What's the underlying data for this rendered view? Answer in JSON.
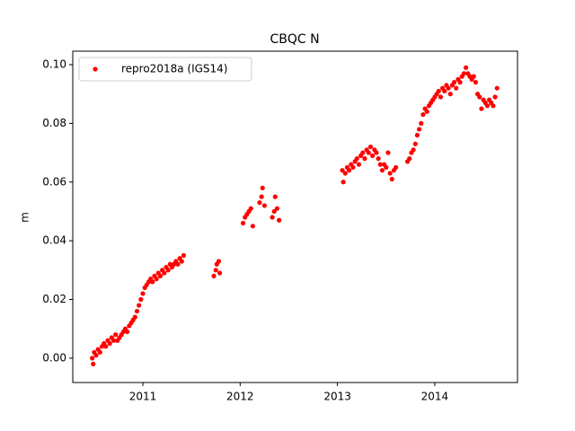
{
  "chart_data": {
    "type": "scatter",
    "title": "CBQC N",
    "ylabel": "m",
    "xlim": [
      2010.28,
      2014.85
    ],
    "xticks": [
      2011,
      2012,
      2013,
      2014
    ],
    "ylim": [
      -0.0083,
      0.1046
    ],
    "yticks": [
      {
        "value": 0,
        "label": "0.00"
      },
      0.02,
      0.04,
      0.06,
      0.08,
      {
        "value": 0.1,
        "label": "0.10"
      }
    ],
    "legend": "upper left",
    "grid": false,
    "series": [
      {
        "name": "repro2018a (IGS14)",
        "color": "#ff0000",
        "x": [
          2010.48,
          2010.49,
          2010.5,
          2010.52,
          2010.54,
          2010.56,
          2010.58,
          2010.6,
          2010.62,
          2010.64,
          2010.66,
          2010.68,
          2010.7,
          2010.72,
          2010.74,
          2010.76,
          2010.78,
          2010.8,
          2010.82,
          2010.84,
          2010.86,
          2010.88,
          2010.9,
          2010.92,
          2010.94,
          2010.96,
          2010.98,
          2011.0,
          2011.02,
          2011.04,
          2011.06,
          2011.08,
          2011.1,
          2011.12,
          2011.14,
          2011.16,
          2011.18,
          2011.2,
          2011.22,
          2011.24,
          2011.26,
          2011.28,
          2011.3,
          2011.32,
          2011.34,
          2011.36,
          2011.38,
          2011.4,
          2011.42,
          2011.73,
          2011.75,
          2011.76,
          2011.78,
          2011.79,
          2012.03,
          2012.05,
          2012.07,
          2012.09,
          2012.11,
          2012.13,
          2012.2,
          2012.22,
          2012.23,
          2012.25,
          2012.33,
          2012.35,
          2012.36,
          2012.38,
          2012.4,
          2013.05,
          2013.06,
          2013.08,
          2013.1,
          2013.12,
          2013.14,
          2013.16,
          2013.18,
          2013.2,
          2013.22,
          2013.24,
          2013.26,
          2013.28,
          2013.3,
          2013.32,
          2013.34,
          2013.36,
          2013.38,
          2013.4,
          2013.42,
          2013.44,
          2013.46,
          2013.48,
          2013.5,
          2013.52,
          2013.54,
          2013.56,
          2013.58,
          2013.6,
          2013.72,
          2013.74,
          2013.76,
          2013.78,
          2013.8,
          2013.82,
          2013.84,
          2013.86,
          2013.88,
          2013.9,
          2013.92,
          2013.94,
          2013.96,
          2013.98,
          2014.0,
          2014.02,
          2014.04,
          2014.06,
          2014.08,
          2014.1,
          2014.12,
          2014.14,
          2014.16,
          2014.18,
          2014.2,
          2014.22,
          2014.24,
          2014.26,
          2014.28,
          2014.3,
          2014.32,
          2014.34,
          2014.36,
          2014.38,
          2014.4,
          2014.42,
          2014.44,
          2014.46,
          2014.48,
          2014.5,
          2014.52,
          2014.54,
          2014.56,
          2014.58,
          2014.6,
          2014.62,
          2014.64
        ],
        "values": [
          0.0,
          -0.002,
          0.002,
          0.001,
          0.003,
          0.002,
          0.004,
          0.005,
          0.004,
          0.006,
          0.005,
          0.007,
          0.006,
          0.008,
          0.006,
          0.007,
          0.008,
          0.009,
          0.01,
          0.009,
          0.011,
          0.012,
          0.013,
          0.014,
          0.016,
          0.018,
          0.02,
          0.022,
          0.024,
          0.025,
          0.026,
          0.027,
          0.026,
          0.028,
          0.027,
          0.029,
          0.028,
          0.03,
          0.029,
          0.031,
          0.03,
          0.032,
          0.031,
          0.032,
          0.033,
          0.032,
          0.034,
          0.033,
          0.035,
          0.028,
          0.03,
          0.032,
          0.033,
          0.029,
          0.046,
          0.048,
          0.049,
          0.05,
          0.051,
          0.045,
          0.053,
          0.055,
          0.058,
          0.052,
          0.048,
          0.05,
          0.055,
          0.051,
          0.047,
          0.064,
          0.06,
          0.063,
          0.065,
          0.064,
          0.066,
          0.065,
          0.067,
          0.068,
          0.066,
          0.069,
          0.07,
          0.068,
          0.071,
          0.07,
          0.072,
          0.069,
          0.071,
          0.07,
          0.068,
          0.066,
          0.064,
          0.066,
          0.065,
          0.07,
          0.063,
          0.061,
          0.064,
          0.065,
          0.067,
          0.068,
          0.07,
          0.071,
          0.073,
          0.076,
          0.078,
          0.08,
          0.083,
          0.085,
          0.084,
          0.086,
          0.087,
          0.088,
          0.089,
          0.09,
          0.091,
          0.089,
          0.092,
          0.091,
          0.093,
          0.092,
          0.09,
          0.093,
          0.094,
          0.092,
          0.095,
          0.094,
          0.096,
          0.097,
          0.099,
          0.097,
          0.096,
          0.095,
          0.096,
          0.094,
          0.09,
          0.089,
          0.085,
          0.088,
          0.087,
          0.086,
          0.088,
          0.087,
          0.086,
          0.089,
          0.092
        ]
      }
    ]
  }
}
